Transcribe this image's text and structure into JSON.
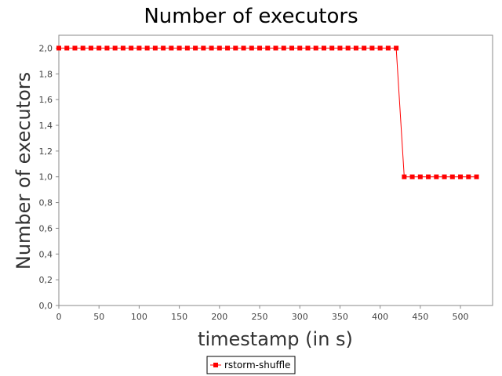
{
  "chart_data": {
    "type": "line",
    "title": "Number of executors",
    "xlabel": "timestamp (in s)",
    "ylabel": "Number of executors",
    "xlim": [
      0,
      540
    ],
    "ylim": [
      0,
      2.1
    ],
    "x_ticks": [
      0,
      50,
      100,
      150,
      200,
      250,
      300,
      350,
      400,
      450,
      500
    ],
    "x_tick_labels": [
      "0",
      "50",
      "100",
      "150",
      "200",
      "250",
      "300",
      "350",
      "400",
      "450",
      "500"
    ],
    "y_ticks": [
      0,
      0.2,
      0.4,
      0.6,
      0.8,
      1.0,
      1.2,
      1.4,
      1.6,
      1.8,
      2.0
    ],
    "y_tick_labels": [
      "0,0",
      "0,2",
      "0,4",
      "0,6",
      "0,8",
      "1,0",
      "1,2",
      "1,4",
      "1,6",
      "1,8",
      "2,0"
    ],
    "grid": false,
    "legend_position": "bottom-center",
    "series": [
      {
        "name": "rstorm-shuffle",
        "color": "#ff0000",
        "marker": "square",
        "x": [
          0,
          10,
          20,
          30,
          40,
          50,
          60,
          70,
          80,
          90,
          100,
          110,
          120,
          130,
          140,
          150,
          160,
          170,
          180,
          190,
          200,
          210,
          220,
          230,
          240,
          250,
          260,
          270,
          280,
          290,
          300,
          310,
          320,
          330,
          340,
          350,
          360,
          370,
          380,
          390,
          400,
          410,
          420,
          430,
          440,
          450,
          460,
          470,
          480,
          490,
          500,
          510,
          520
        ],
        "y": [
          2,
          2,
          2,
          2,
          2,
          2,
          2,
          2,
          2,
          2,
          2,
          2,
          2,
          2,
          2,
          2,
          2,
          2,
          2,
          2,
          2,
          2,
          2,
          2,
          2,
          2,
          2,
          2,
          2,
          2,
          2,
          2,
          2,
          2,
          2,
          2,
          2,
          2,
          2,
          2,
          2,
          2,
          2,
          1,
          1,
          1,
          1,
          1,
          1,
          1,
          1,
          1,
          1
        ]
      }
    ]
  }
}
